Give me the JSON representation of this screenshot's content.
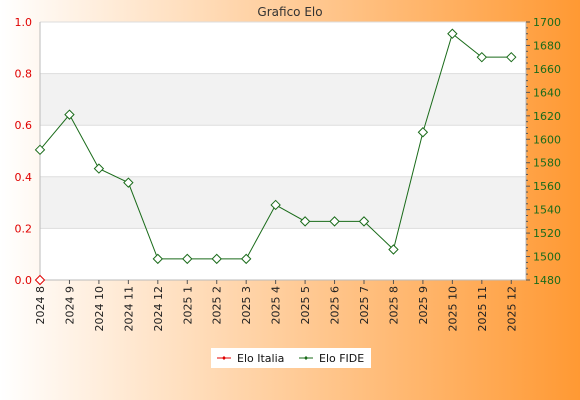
{
  "chart_data": {
    "type": "line",
    "title": "Grafico Elo",
    "categories": [
      "2024 8",
      "2024 9",
      "2024 10",
      "2024 11",
      "2024 12",
      "2025 1",
      "2025 2",
      "2025 3",
      "2025 4",
      "2025 5",
      "2025 6",
      "2025 7",
      "2025 8",
      "2025 9",
      "2025 10",
      "2025 11",
      "2025 12"
    ],
    "series": [
      {
        "name": "Elo Italia",
        "axis": "left",
        "color": "#e00000",
        "values": [
          0,
          null,
          null,
          null,
          null,
          null,
          null,
          null,
          null,
          null,
          null,
          null,
          null,
          null,
          null,
          null,
          null
        ]
      },
      {
        "name": "Elo FIDE",
        "axis": "right",
        "color": "#1a6b1a",
        "values": [
          1591,
          1621,
          1575,
          1563,
          1498,
          1498,
          1498,
          1498,
          1544,
          1530,
          1530,
          1530,
          1506,
          1606,
          1690,
          1670,
          1670
        ]
      }
    ],
    "y_left": {
      "ylim": [
        0,
        1
      ],
      "ticks": [
        "0.0",
        "0.2",
        "0.4",
        "0.6",
        "0.8",
        "1.0"
      ],
      "color": "#e00000"
    },
    "y_right": {
      "ylim": [
        1480,
        1700
      ],
      "ticks": [
        "1480",
        "1500",
        "1520",
        "1540",
        "1560",
        "1580",
        "1600",
        "1620",
        "1640",
        "1660",
        "1680",
        "1700"
      ],
      "color": "#1a6b1a"
    },
    "grid": "horizontal bands",
    "legend": {
      "placement": "bottom-center",
      "entries": [
        "Elo Italia",
        "Elo FIDE"
      ]
    },
    "background_gradient": [
      "#ffffff",
      "#ff9933"
    ]
  }
}
